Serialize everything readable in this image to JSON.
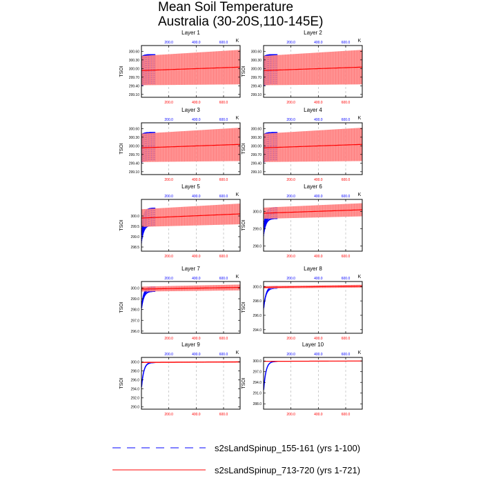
{
  "title_line1": "Mean Soil Temperature",
  "title_line2": "Australia (30-20S,110-145E)",
  "colors": {
    "blue_series": "#0000ff",
    "red_series": "#ff0000",
    "red_envelope": "#ff8080"
  },
  "legend": [
    {
      "label": "s2sLandSpinup_155-161 (yrs 1-100)",
      "color": "#0000ff",
      "style": "dashed"
    },
    {
      "label": "s2sLandSpinup_713-720 (yrs 1-721)",
      "color": "#ff0000",
      "style": "solid"
    }
  ],
  "chart_data": [
    {
      "type": "line",
      "title": "Layer 1",
      "ylabel": "TSOI",
      "units": "K",
      "top_axis_ticks": [
        "200.0",
        "400.0",
        "600.0"
      ],
      "bottom_axis_ticks": [
        "200.0",
        "400.0",
        "600.0"
      ],
      "xlim": [
        0,
        721
      ],
      "ylim": [
        299.0,
        300.8
      ],
      "yticks": [
        "300.60",
        "300.30",
        "300.00",
        "299.70",
        "299.40",
        "299.10"
      ],
      "series": [
        {
          "name": "s2sLandSpinup_155-161",
          "x_range": [
            1,
            100
          ],
          "start": 299.9,
          "end": 299.98,
          "amplitude": 0.52,
          "color": "#0000ff"
        },
        {
          "name": "s2sLandSpinup_713-720",
          "x_range": [
            1,
            721
          ],
          "start": 299.93,
          "end": 300.05,
          "amplitude": 0.6,
          "color": "#ff0000"
        }
      ]
    },
    {
      "type": "line",
      "title": "Layer 2",
      "ylabel": "TSOI",
      "units": "K",
      "top_axis_ticks": [
        "200.0",
        "400.0",
        "600.0"
      ],
      "bottom_axis_ticks": [
        "200.0",
        "400.0",
        "600.0"
      ],
      "xlim": [
        0,
        721
      ],
      "ylim": [
        299.0,
        300.8
      ],
      "yticks": [
        "300.60",
        "300.30",
        "300.00",
        "299.70",
        "299.40",
        "299.10"
      ],
      "series": [
        {
          "name": "s2sLandSpinup_155-161",
          "x_range": [
            1,
            100
          ],
          "start": 299.9,
          "end": 299.98,
          "amplitude": 0.52,
          "color": "#0000ff"
        },
        {
          "name": "s2sLandSpinup_713-720",
          "x_range": [
            1,
            721
          ],
          "start": 299.93,
          "end": 300.05,
          "amplitude": 0.6,
          "color": "#ff0000"
        }
      ]
    },
    {
      "type": "line",
      "title": "Layer 3",
      "ylabel": "TSOI",
      "units": "K",
      "top_axis_ticks": [
        "200.0",
        "400.0",
        "600.0"
      ],
      "bottom_axis_ticks": [
        "200.0",
        "400.0",
        "600.0"
      ],
      "xlim": [
        0,
        721
      ],
      "ylim": [
        299.0,
        300.8
      ],
      "yticks": [
        "300.60",
        "300.30",
        "300.00",
        "299.70",
        "299.40",
        "299.10"
      ],
      "series": [
        {
          "name": "s2sLandSpinup_155-161",
          "x_range": [
            1,
            100
          ],
          "start": 299.9,
          "end": 299.98,
          "amplitude": 0.5,
          "color": "#0000ff"
        },
        {
          "name": "s2sLandSpinup_713-720",
          "x_range": [
            1,
            721
          ],
          "start": 299.93,
          "end": 300.05,
          "amplitude": 0.58,
          "color": "#ff0000"
        }
      ]
    },
    {
      "type": "line",
      "title": "Layer 4",
      "ylabel": "TSOI",
      "units": "K",
      "top_axis_ticks": [
        "200.0",
        "400.0",
        "600.0"
      ],
      "bottom_axis_ticks": [
        "200.0",
        "400.0",
        "600.0"
      ],
      "xlim": [
        0,
        721
      ],
      "ylim": [
        299.0,
        300.8
      ],
      "yticks": [
        "300.60",
        "300.30",
        "300.00",
        "299.70",
        "299.40",
        "299.10"
      ],
      "series": [
        {
          "name": "s2sLandSpinup_155-161",
          "x_range": [
            1,
            100
          ],
          "start": 299.9,
          "end": 299.98,
          "amplitude": 0.5,
          "color": "#0000ff"
        },
        {
          "name": "s2sLandSpinup_713-720",
          "x_range": [
            1,
            721
          ],
          "start": 299.93,
          "end": 300.05,
          "amplitude": 0.58,
          "color": "#ff0000"
        }
      ]
    },
    {
      "type": "line",
      "title": "Layer 5",
      "ylabel": "TSOI",
      "units": "K",
      "top_axis_ticks": [
        "200.0",
        "400.0",
        "600.0"
      ],
      "bottom_axis_ticks": [
        "200.0",
        "400.0",
        "600.0"
      ],
      "xlim": [
        0,
        721
      ],
      "ylim": [
        298.3,
        300.8
      ],
      "yticks": [
        "300.0",
        "299.5",
        "299.0",
        "298.5"
      ],
      "series": [
        {
          "name": "s2sLandSpinup_155-161",
          "x_range": [
            1,
            100
          ],
          "start": 299.1,
          "end": 299.95,
          "amplitude": 0.45,
          "color": "#0000ff"
        },
        {
          "name": "s2sLandSpinup_713-720",
          "x_range": [
            1,
            721
          ],
          "start": 299.9,
          "end": 300.1,
          "amplitude": 0.5,
          "color": "#ff0000"
        }
      ]
    },
    {
      "type": "line",
      "title": "Layer 6",
      "ylabel": "TSOI",
      "units": "K",
      "top_axis_ticks": [
        "200.0",
        "400.0",
        "600.0"
      ],
      "bottom_axis_ticks": [
        "200.0",
        "400.0",
        "600.0"
      ],
      "xlim": [
        0,
        721
      ],
      "ylim": [
        297.7,
        300.7
      ],
      "yticks": [
        "300.0",
        "299.0",
        "298.0"
      ],
      "series": [
        {
          "name": "s2sLandSpinup_155-161",
          "x_range": [
            1,
            100
          ],
          "start": 298.9,
          "end": 299.9,
          "amplitude": 0.35,
          "color": "#0000ff"
        },
        {
          "name": "s2sLandSpinup_713-720",
          "x_range": [
            1,
            721
          ],
          "start": 299.9,
          "end": 300.1,
          "amplitude": 0.38,
          "color": "#ff0000"
        }
      ]
    },
    {
      "type": "line",
      "title": "Layer 7",
      "ylabel": "TSOI",
      "units": "K",
      "top_axis_ticks": [
        "200.0",
        "400.0",
        "600.0"
      ],
      "bottom_axis_ticks": [
        "200.0",
        "400.0",
        "600.0"
      ],
      "xlim": [
        0,
        721
      ],
      "ylim": [
        295.8,
        300.6
      ],
      "yticks": [
        "300.0",
        "299.0",
        "298.0",
        "297.0",
        "296.0"
      ],
      "series": [
        {
          "name": "s2sLandSpinup_155-161",
          "x_range": [
            1,
            100
          ],
          "start": 298.2,
          "end": 299.9,
          "amplitude": 0.25,
          "color": "#0000ff"
        },
        {
          "name": "s2sLandSpinup_713-720",
          "x_range": [
            1,
            721
          ],
          "start": 299.9,
          "end": 300.05,
          "amplitude": 0.27,
          "color": "#ff0000"
        }
      ]
    },
    {
      "type": "line",
      "title": "Layer 8",
      "ylabel": "TSOI",
      "units": "K",
      "top_axis_ticks": [
        "200.0",
        "400.0",
        "600.0"
      ],
      "bottom_axis_ticks": [
        "200.0",
        "400.0",
        "600.0"
      ],
      "xlim": [
        0,
        721
      ],
      "ylim": [
        293.5,
        300.7
      ],
      "yticks": [
        "300.0",
        "298.0",
        "296.0",
        "294.0"
      ],
      "series": [
        {
          "name": "s2sLandSpinup_155-161",
          "x_range": [
            1,
            100
          ],
          "start": 297.0,
          "end": 299.9,
          "amplitude": 0.18,
          "color": "#0000ff"
        },
        {
          "name": "s2sLandSpinup_713-720",
          "x_range": [
            1,
            721
          ],
          "start": 299.9,
          "end": 300.05,
          "amplitude": 0.2,
          "color": "#ff0000"
        }
      ]
    },
    {
      "type": "line",
      "title": "Layer 9",
      "ylabel": "TSOI",
      "units": "K",
      "top_axis_ticks": [
        "200.0",
        "400.0",
        "600.0"
      ],
      "bottom_axis_ticks": [
        "200.0",
        "400.0",
        "600.0"
      ],
      "xlim": [
        0,
        721
      ],
      "ylim": [
        289.5,
        301.0
      ],
      "yticks": [
        "300.0",
        "298.0",
        "296.0",
        "294.0",
        "292.0",
        "290.0"
      ],
      "series": [
        {
          "name": "s2sLandSpinup_155-161",
          "x_range": [
            1,
            100
          ],
          "start": 294.5,
          "end": 299.9,
          "amplitude": 0.12,
          "color": "#0000ff"
        },
        {
          "name": "s2sLandSpinup_713-720",
          "x_range": [
            1,
            721
          ],
          "start": 299.9,
          "end": 300.0,
          "amplitude": 0.15,
          "color": "#ff0000"
        }
      ]
    },
    {
      "type": "line",
      "title": "Layer 10",
      "ylabel": "TSOI",
      "units": "K",
      "top_axis_ticks": [
        "200.0",
        "400.0",
        "600.0"
      ],
      "bottom_axis_ticks": [
        "200.0",
        "400.0",
        "600.0"
      ],
      "xlim": [
        0,
        721
      ],
      "ylim": [
        286.5,
        301.0
      ],
      "yticks": [
        "300.0",
        "297.0",
        "294.0",
        "291.0",
        "288.0"
      ],
      "series": [
        {
          "name": "s2sLandSpinup_155-161",
          "x_range": [
            1,
            100
          ],
          "start": 292.0,
          "end": 299.9,
          "amplitude": 0.08,
          "color": "#0000ff"
        },
        {
          "name": "s2sLandSpinup_713-720",
          "x_range": [
            1,
            721
          ],
          "start": 299.9,
          "end": 300.0,
          "amplitude": 0.1,
          "color": "#ff0000"
        }
      ]
    }
  ]
}
